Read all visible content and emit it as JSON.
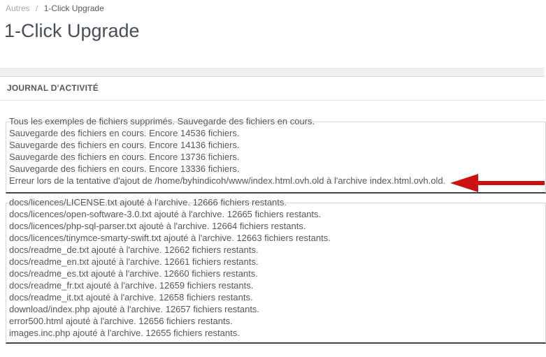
{
  "breadcrumb": {
    "parent": "Autres",
    "separator": "/",
    "current": "1-Click Upgrade"
  },
  "page": {
    "title": "1-Click Upgrade"
  },
  "panel": {
    "heading": "JOURNAL D'ACTIVITÉ"
  },
  "activity_log": {
    "primary_lines": [
      "Tous les exemples de fichiers supprimés. Sauvegarde des fichiers en cours.",
      "Sauvegarde des fichiers en cours. Encore 14536 fichiers.",
      "Sauvegarde des fichiers en cours. Encore 14136 fichiers.",
      "Sauvegarde des fichiers en cours. Encore 13736 fichiers.",
      "Sauvegarde des fichiers en cours. Encore 13336 fichiers.",
      "Erreur lors de la tentative d'ajout de /home/byhindicoh/www/index.html.ovh.old à l'archive index.html.ovh.old."
    ],
    "detail_lines": [
      "docs/licences/LICENSE.txt ajouté à l'archive. 12666 fichiers restants.",
      "docs/licences/open-software-3.0.txt ajouté à l'archive. 12665 fichiers restants.",
      "docs/licences/php-sql-parser.txt ajouté à l'archive. 12664 fichiers restants.",
      "docs/licences/tinymce-smarty-swift.txt ajouté à l'archive. 12663 fichiers restants.",
      "docs/readme_de.txt ajouté à l'archive. 12662 fichiers restants.",
      "docs/readme_en.txt ajouté à l'archive. 12661 fichiers restants.",
      "docs/readme_es.txt ajouté à l'archive. 12660 fichiers restants.",
      "docs/readme_fr.txt ajouté à l'archive. 12659 fichiers restants.",
      "docs/readme_it.txt ajouté à l'archive. 12658 fichiers restants.",
      "download/index.php ajouté à l'archive. 12657 fichiers restants.",
      "error500.html ajouté à l'archive. 12656 fichiers restants.",
      "images.inc.php ajouté à l'archive. 12655 fichiers restants."
    ]
  },
  "annotation": {
    "arrow_color": "#cc1111",
    "arrow_direction": "left",
    "arrow_target": "error-log-line"
  }
}
